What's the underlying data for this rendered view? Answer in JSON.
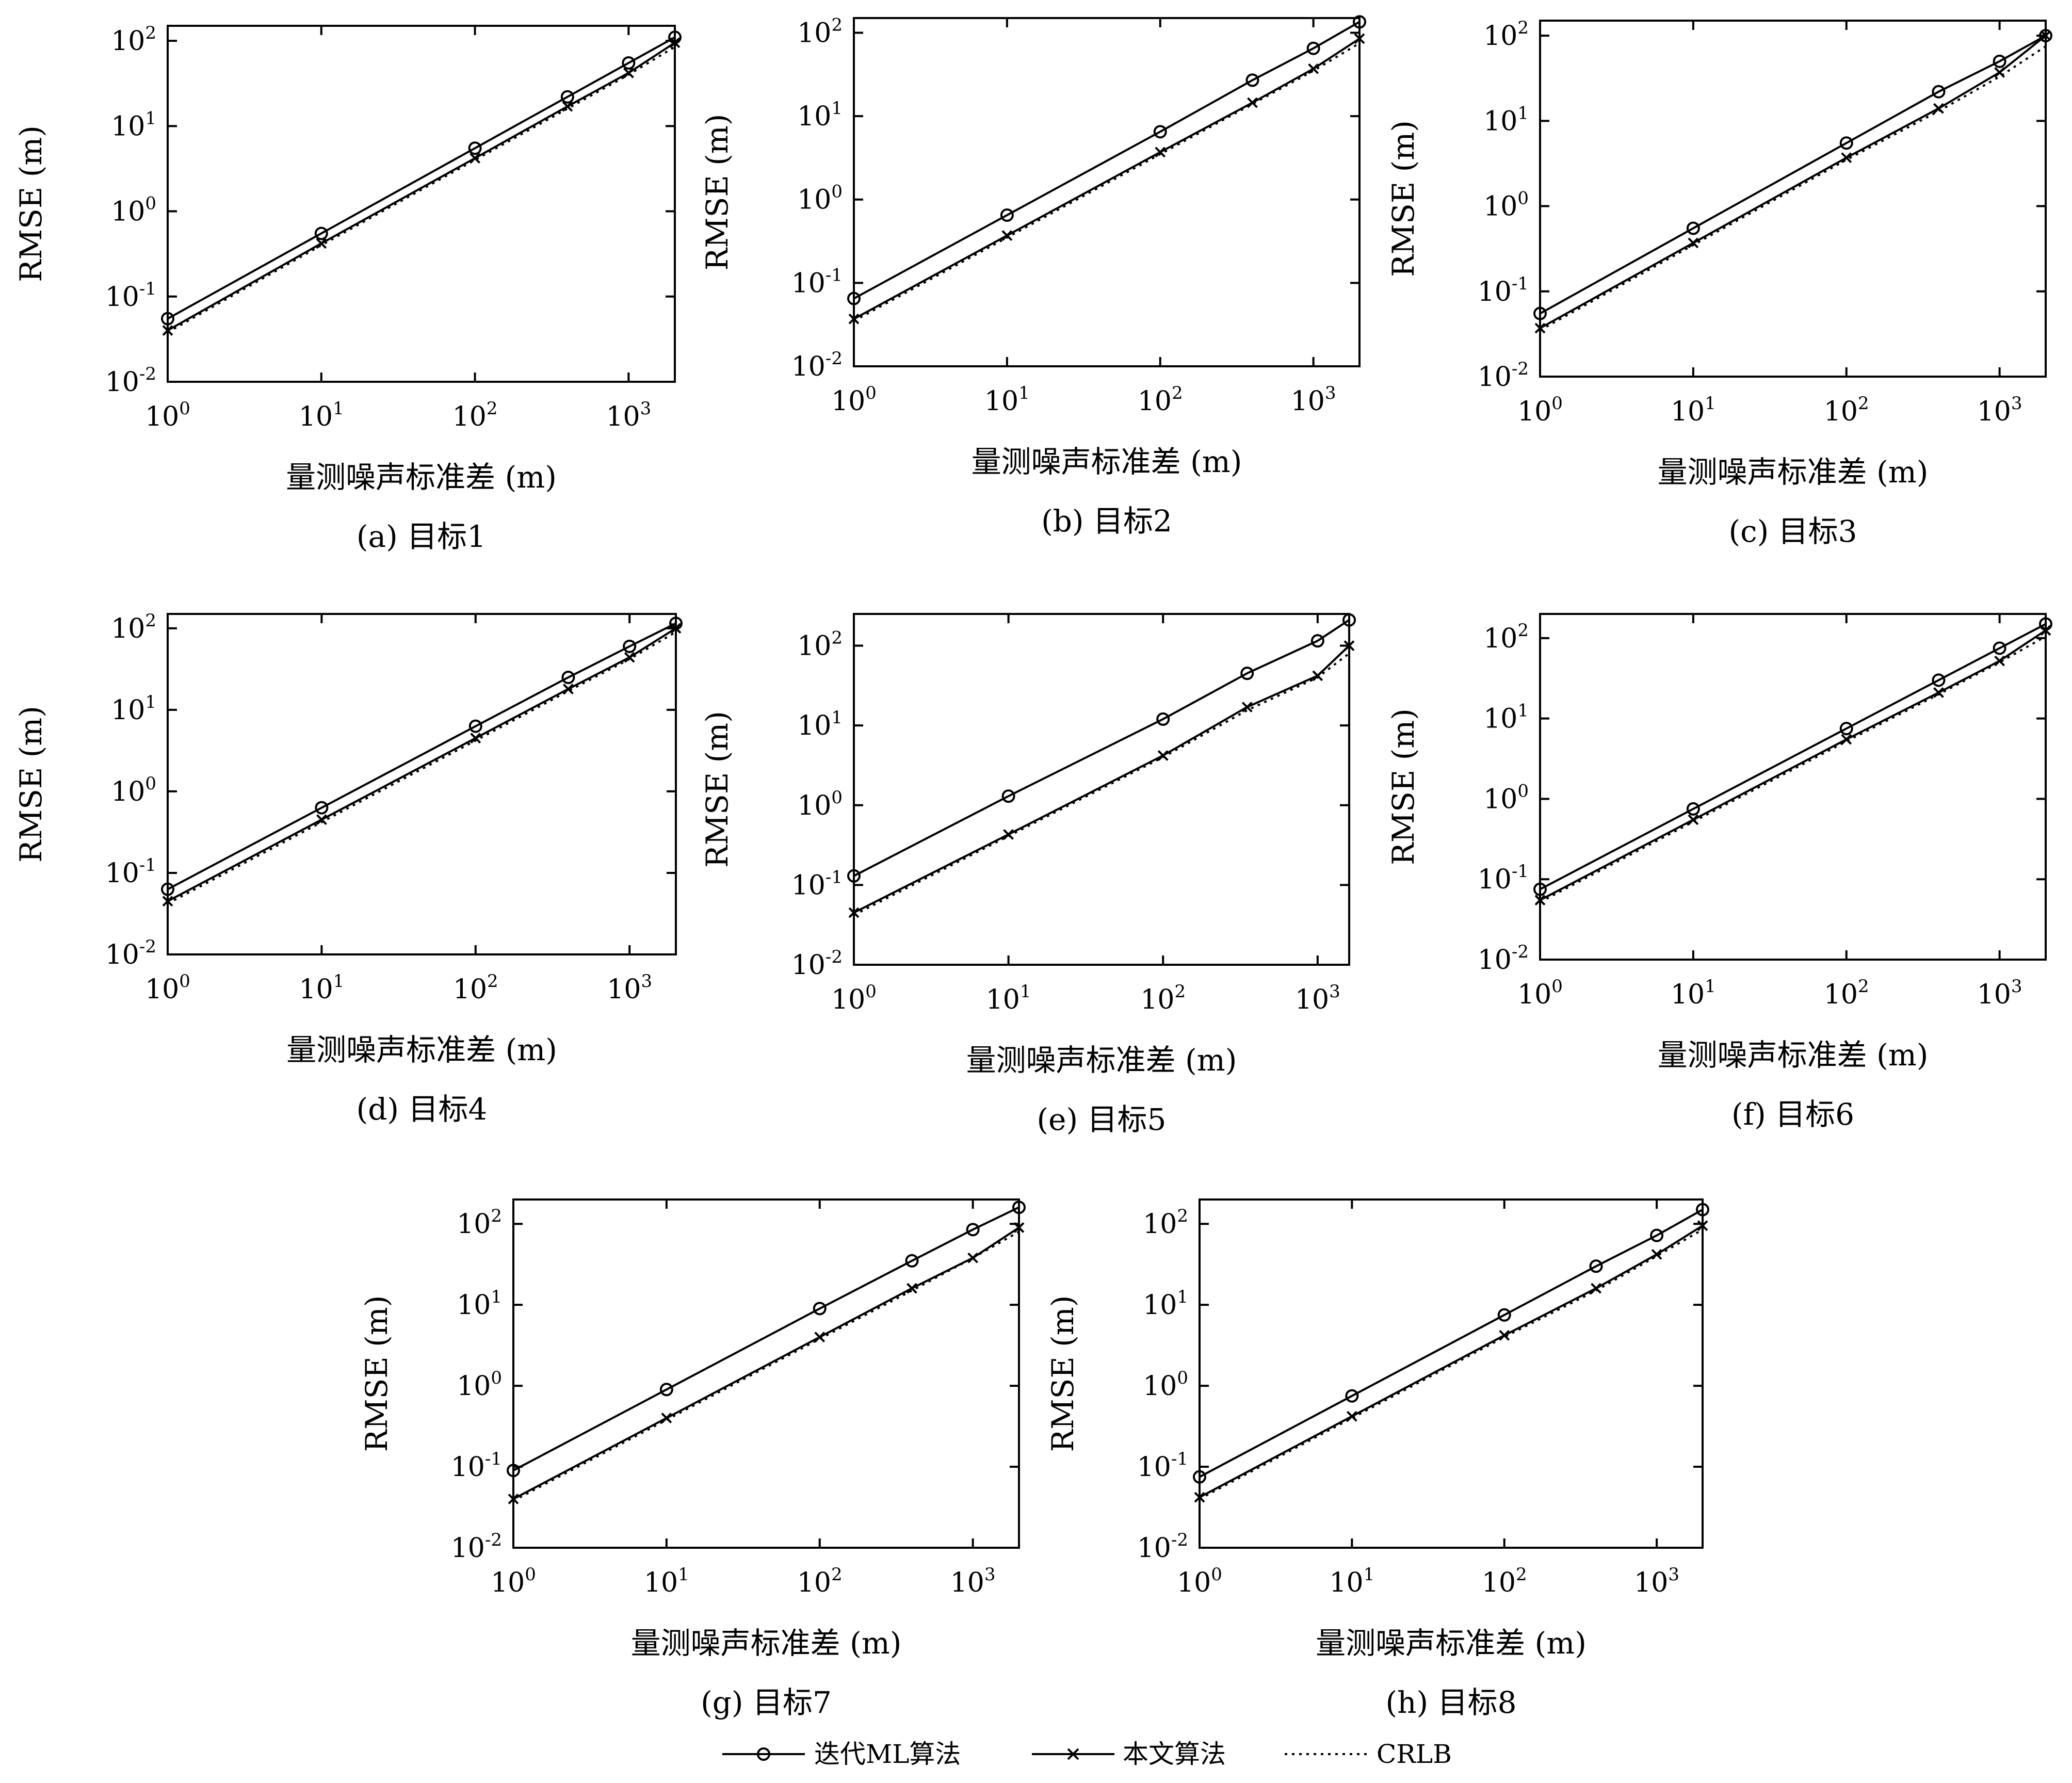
{
  "figure": {
    "legend": {
      "items": [
        {
          "label": "迭代ML算法",
          "style": "solid",
          "marker": "circle"
        },
        {
          "label": "本文算法",
          "style": "solid",
          "marker": "x"
        },
        {
          "label": "CRLB",
          "style": "dotted",
          "marker": "none"
        }
      ]
    }
  },
  "chart_data": [
    {
      "type": "line",
      "title": "(a) 目标1",
      "xlabel": "量测噪声标准差 (m)",
      "ylabel": "RMSE (m)",
      "xscale": "log",
      "yscale": "log",
      "xlim": [
        1,
        2000
      ],
      "ylim": [
        0.01,
        150
      ],
      "xticks": [
        {
          "v": 1,
          "b": "10",
          "e": "0"
        },
        {
          "v": 10,
          "b": "10",
          "e": "1"
        },
        {
          "v": 100,
          "b": "10",
          "e": "2"
        },
        {
          "v": 1000,
          "b": "10",
          "e": "3"
        }
      ],
      "yticks": [
        {
          "v": 0.01,
          "b": "10",
          "e": "-2"
        },
        {
          "v": 0.1,
          "b": "10",
          "e": "-1"
        },
        {
          "v": 1,
          "b": "10",
          "e": "0"
        },
        {
          "v": 10,
          "b": "10",
          "e": "1"
        },
        {
          "v": 100,
          "b": "10",
          "e": "2"
        }
      ],
      "x": [
        1,
        10,
        100,
        400,
        1000,
        2000
      ],
      "series": [
        {
          "name": "迭代ML算法",
          "values": [
            0.055,
            0.55,
            5.5,
            22,
            55,
            110
          ]
        },
        {
          "name": "本文算法",
          "values": [
            0.04,
            0.42,
            4.2,
            17,
            42,
            95
          ]
        },
        {
          "name": "CRLB",
          "values": [
            0.038,
            0.4,
            4.0,
            16,
            40,
            85
          ]
        }
      ]
    },
    {
      "type": "line",
      "title": "(b) 目标2",
      "xlabel": "量测噪声标准差 (m)",
      "ylabel": "RMSE (m)",
      "xscale": "log",
      "yscale": "log",
      "xlim": [
        1,
        2000
      ],
      "ylim": [
        0.01,
        150
      ],
      "xticks": [
        {
          "v": 1,
          "b": "10",
          "e": "0"
        },
        {
          "v": 10,
          "b": "10",
          "e": "1"
        },
        {
          "v": 100,
          "b": "10",
          "e": "2"
        },
        {
          "v": 1000,
          "b": "10",
          "e": "3"
        }
      ],
      "yticks": [
        {
          "v": 0.01,
          "b": "10",
          "e": "-2"
        },
        {
          "v": 0.1,
          "b": "10",
          "e": "-1"
        },
        {
          "v": 1,
          "b": "10",
          "e": "0"
        },
        {
          "v": 10,
          "b": "10",
          "e": "1"
        },
        {
          "v": 100,
          "b": "10",
          "e": "2"
        }
      ],
      "x": [
        1,
        10,
        100,
        400,
        1000,
        2000
      ],
      "series": [
        {
          "name": "迭代ML算法",
          "values": [
            0.065,
            0.65,
            6.5,
            27,
            65,
            135
          ]
        },
        {
          "name": "本文算法",
          "values": [
            0.037,
            0.37,
            3.7,
            14.5,
            37,
            85
          ]
        },
        {
          "name": "CRLB",
          "values": [
            0.035,
            0.35,
            3.5,
            14,
            35,
            75
          ]
        }
      ]
    },
    {
      "type": "line",
      "title": "(c) 目标3",
      "xlabel": "量测噪声标准差 (m)",
      "ylabel": "RMSE (m)",
      "xscale": "log",
      "yscale": "log",
      "xlim": [
        1,
        2000
      ],
      "ylim": [
        0.01,
        150
      ],
      "xticks": [
        {
          "v": 1,
          "b": "10",
          "e": "0"
        },
        {
          "v": 10,
          "b": "10",
          "e": "1"
        },
        {
          "v": 100,
          "b": "10",
          "e": "2"
        },
        {
          "v": 1000,
          "b": "10",
          "e": "3"
        }
      ],
      "yticks": [
        {
          "v": 0.01,
          "b": "10",
          "e": "-2"
        },
        {
          "v": 0.1,
          "b": "10",
          "e": "-1"
        },
        {
          "v": 1,
          "b": "10",
          "e": "0"
        },
        {
          "v": 10,
          "b": "10",
          "e": "1"
        },
        {
          "v": 100,
          "b": "10",
          "e": "2"
        }
      ],
      "x": [
        1,
        10,
        100,
        400,
        1000,
        2000
      ],
      "series": [
        {
          "name": "迭代ML算法",
          "values": [
            0.055,
            0.55,
            5.5,
            22,
            50,
            100
          ]
        },
        {
          "name": "本文算法",
          "values": [
            0.037,
            0.37,
            3.7,
            14,
            37,
            100
          ]
        },
        {
          "name": "CRLB",
          "values": [
            0.035,
            0.35,
            3.5,
            13,
            33,
            75
          ]
        }
      ]
    },
    {
      "type": "line",
      "title": "(d) 目标4",
      "xlabel": "量测噪声标准差 (m)",
      "ylabel": "RMSE (m)",
      "xscale": "log",
      "yscale": "log",
      "xlim": [
        1,
        2000
      ],
      "ylim": [
        0.01,
        150
      ],
      "xticks": [
        {
          "v": 1,
          "b": "10",
          "e": "0"
        },
        {
          "v": 10,
          "b": "10",
          "e": "1"
        },
        {
          "v": 100,
          "b": "10",
          "e": "2"
        },
        {
          "v": 1000,
          "b": "10",
          "e": "3"
        }
      ],
      "yticks": [
        {
          "v": 0.01,
          "b": "10",
          "e": "-2"
        },
        {
          "v": 0.1,
          "b": "10",
          "e": "-1"
        },
        {
          "v": 1,
          "b": "10",
          "e": "0"
        },
        {
          "v": 10,
          "b": "10",
          "e": "1"
        },
        {
          "v": 100,
          "b": "10",
          "e": "2"
        }
      ],
      "x": [
        1,
        10,
        100,
        400,
        1000,
        2000
      ],
      "series": [
        {
          "name": "迭代ML算法",
          "values": [
            0.063,
            0.63,
            6.3,
            25,
            60,
            115
          ]
        },
        {
          "name": "本文算法",
          "values": [
            0.045,
            0.45,
            4.5,
            18,
            44,
            100
          ]
        },
        {
          "name": "CRLB",
          "values": [
            0.042,
            0.42,
            4.2,
            17,
            42,
            90
          ]
        }
      ]
    },
    {
      "type": "line",
      "title": "(e) 目标5",
      "xlabel": "量测噪声标准差 (m)",
      "ylabel": "RMSE (m)",
      "xscale": "log",
      "yscale": "log",
      "xlim": [
        1,
        1600
      ],
      "ylim": [
        0.01,
        250
      ],
      "xticks": [
        {
          "v": 1,
          "b": "10",
          "e": "0"
        },
        {
          "v": 10,
          "b": "10",
          "e": "1"
        },
        {
          "v": 100,
          "b": "10",
          "e": "2"
        },
        {
          "v": 1000,
          "b": "10",
          "e": "3"
        }
      ],
      "yticks": [
        {
          "v": 0.01,
          "b": "10",
          "e": "-2"
        },
        {
          "v": 0.1,
          "b": "10",
          "e": "-1"
        },
        {
          "v": 1,
          "b": "10",
          "e": "0"
        },
        {
          "v": 10,
          "b": "10",
          "e": "1"
        },
        {
          "v": 100,
          "b": "10",
          "e": "2"
        }
      ],
      "x": [
        1,
        10,
        100,
        350,
        1000,
        1600
      ],
      "series": [
        {
          "name": "迭代ML算法",
          "values": [
            0.13,
            1.3,
            12,
            45,
            115,
            210
          ]
        },
        {
          "name": "本文算法",
          "values": [
            0.045,
            0.43,
            4.2,
            17,
            42,
            100
          ]
        },
        {
          "name": "CRLB",
          "values": [
            0.042,
            0.41,
            4.0,
            15.5,
            40,
            80
          ]
        }
      ]
    },
    {
      "type": "line",
      "title": "(f) 目标6",
      "xlabel": "量测噪声标准差 (m)",
      "ylabel": "RMSE (m)",
      "xscale": "log",
      "yscale": "log",
      "xlim": [
        1,
        2000
      ],
      "ylim": [
        0.01,
        200
      ],
      "xticks": [
        {
          "v": 1,
          "b": "10",
          "e": "0"
        },
        {
          "v": 10,
          "b": "10",
          "e": "1"
        },
        {
          "v": 100,
          "b": "10",
          "e": "2"
        },
        {
          "v": 1000,
          "b": "10",
          "e": "3"
        }
      ],
      "yticks": [
        {
          "v": 0.01,
          "b": "10",
          "e": "-2"
        },
        {
          "v": 0.1,
          "b": "10",
          "e": "-1"
        },
        {
          "v": 1,
          "b": "10",
          "e": "0"
        },
        {
          "v": 10,
          "b": "10",
          "e": "1"
        },
        {
          "v": 100,
          "b": "10",
          "e": "2"
        }
      ],
      "x": [
        1,
        10,
        100,
        400,
        1000,
        2000
      ],
      "series": [
        {
          "name": "迭代ML算法",
          "values": [
            0.075,
            0.75,
            7.5,
            30,
            75,
            150
          ]
        },
        {
          "name": "本文算法",
          "values": [
            0.055,
            0.55,
            5.5,
            21,
            52,
            125
          ]
        },
        {
          "name": "CRLB",
          "values": [
            0.052,
            0.52,
            5.2,
            20,
            50,
            105
          ]
        }
      ]
    },
    {
      "type": "line",
      "title": "(g) 目标7",
      "xlabel": "量测噪声标准差 (m)",
      "ylabel": "RMSE (m)",
      "xscale": "log",
      "yscale": "log",
      "xlim": [
        1,
        2000
      ],
      "ylim": [
        0.01,
        200
      ],
      "xticks": [
        {
          "v": 1,
          "b": "10",
          "e": "0"
        },
        {
          "v": 10,
          "b": "10",
          "e": "1"
        },
        {
          "v": 100,
          "b": "10",
          "e": "2"
        },
        {
          "v": 1000,
          "b": "10",
          "e": "3"
        }
      ],
      "yticks": [
        {
          "v": 0.01,
          "b": "10",
          "e": "-2"
        },
        {
          "v": 0.1,
          "b": "10",
          "e": "-1"
        },
        {
          "v": 1,
          "b": "10",
          "e": "0"
        },
        {
          "v": 10,
          "b": "10",
          "e": "1"
        },
        {
          "v": 100,
          "b": "10",
          "e": "2"
        }
      ],
      "x": [
        1,
        10,
        100,
        400,
        1000,
        2000
      ],
      "series": [
        {
          "name": "迭代ML算法",
          "values": [
            0.09,
            0.9,
            9,
            35,
            85,
            160
          ]
        },
        {
          "name": "本文算法",
          "values": [
            0.04,
            0.4,
            4,
            16,
            38,
            90
          ]
        },
        {
          "name": "CRLB",
          "values": [
            0.038,
            0.38,
            3.8,
            15,
            38,
            80
          ]
        }
      ]
    },
    {
      "type": "line",
      "title": "(h) 目标8",
      "xlabel": "量测噪声标准差 (m)",
      "ylabel": "RMSE (m)",
      "xscale": "log",
      "yscale": "log",
      "xlim": [
        1,
        2000
      ],
      "ylim": [
        0.01,
        200
      ],
      "xticks": [
        {
          "v": 1,
          "b": "10",
          "e": "0"
        },
        {
          "v": 10,
          "b": "10",
          "e": "1"
        },
        {
          "v": 100,
          "b": "10",
          "e": "2"
        },
        {
          "v": 1000,
          "b": "10",
          "e": "3"
        }
      ],
      "yticks": [
        {
          "v": 0.01,
          "b": "10",
          "e": "-2"
        },
        {
          "v": 0.1,
          "b": "10",
          "e": "-1"
        },
        {
          "v": 1,
          "b": "10",
          "e": "0"
        },
        {
          "v": 10,
          "b": "10",
          "e": "1"
        },
        {
          "v": 100,
          "b": "10",
          "e": "2"
        }
      ],
      "x": [
        1,
        10,
        100,
        400,
        1000,
        2000
      ],
      "series": [
        {
          "name": "迭代ML算法",
          "values": [
            0.075,
            0.75,
            7.5,
            30,
            72,
            150
          ]
        },
        {
          "name": "本文算法",
          "values": [
            0.042,
            0.42,
            4.2,
            16,
            42,
            95
          ]
        },
        {
          "name": "CRLB",
          "values": [
            0.04,
            0.4,
            4.0,
            15,
            40,
            85
          ]
        }
      ]
    }
  ]
}
